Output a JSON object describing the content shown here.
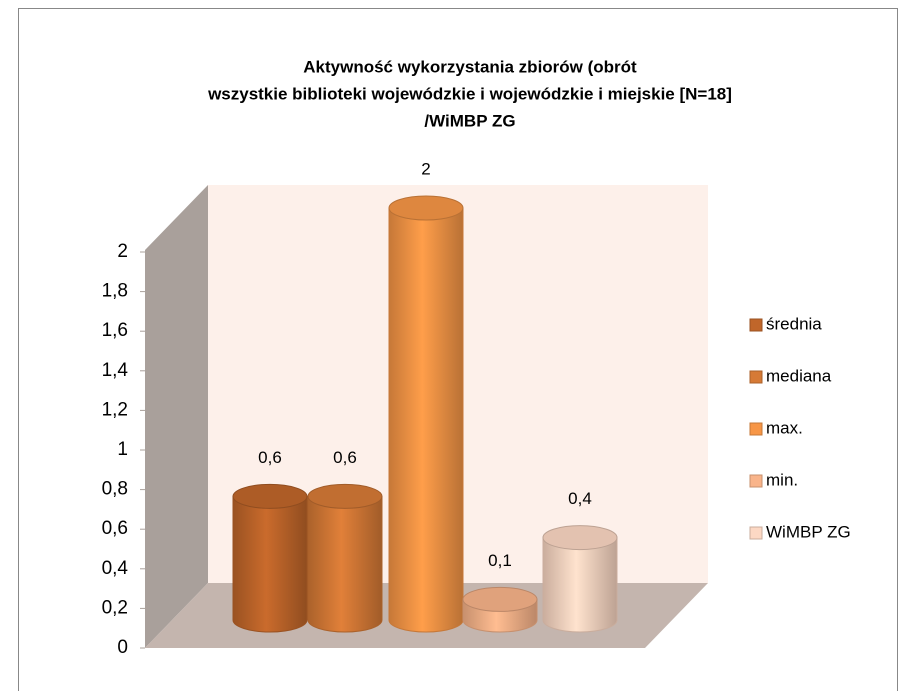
{
  "chart_data": {
    "type": "bar",
    "title": [
      "Aktywność wykorzystania zbiorów (obrót",
      "wszystkie biblioteki wojewódzkie i wojewódzkie i miejskie  [N=18]",
      "/WiMBP ZG"
    ],
    "series": [
      {
        "name": "średnia",
        "color": "#c0662a",
        "values": [
          0.6
        ],
        "value_labels": [
          "0,6"
        ]
      },
      {
        "name": "mediana",
        "color": "#d67a36",
        "values": [
          0.6
        ],
        "value_labels": [
          "0,6"
        ]
      },
      {
        "name": "max.",
        "color": "#f79646",
        "values": [
          2
        ],
        "value_labels": [
          "2"
        ]
      },
      {
        "name": "min.",
        "color": "#f9b48a",
        "values": [
          0.1
        ],
        "value_labels": [
          "0,1"
        ]
      },
      {
        "name": "WiMBP ZG",
        "color": "#fcd8c4",
        "values": [
          0.4
        ],
        "value_labels": [
          "0,4"
        ]
      }
    ],
    "ylim": [
      0,
      2
    ],
    "yticks": [
      0,
      {
        "value": 0.2,
        "label": "0,2"
      },
      {
        "value": 0.4,
        "label": "0,4"
      },
      {
        "value": 0.6,
        "label": "0,6"
      },
      {
        "value": 0.8,
        "label": "0,8"
      },
      1,
      {
        "value": 1.2,
        "label": "1,2"
      },
      {
        "value": 1.4,
        "label": "1,4"
      },
      {
        "value": 1.6,
        "label": "1,6"
      },
      {
        "value": 1.8,
        "label": "1,8"
      },
      2
    ],
    "legend": "right"
  }
}
